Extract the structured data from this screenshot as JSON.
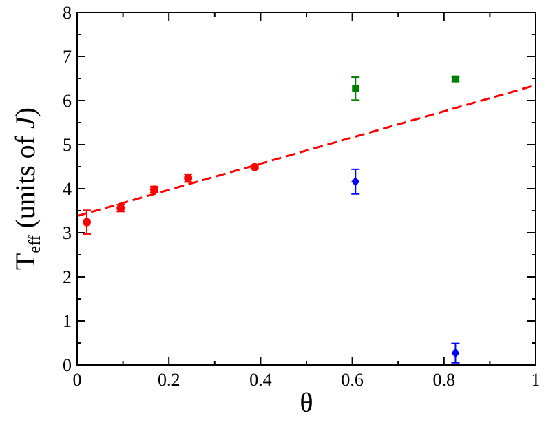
{
  "chart_data": {
    "type": "scatter",
    "xlabel": "θ",
    "ylabel": {
      "main": "T",
      "sub": "eff",
      "rest": " (units of ",
      "italic": "J",
      "close": ")"
    },
    "xlim": [
      0,
      1
    ],
    "ylim": [
      0,
      8
    ],
    "xticks": [
      "0",
      "0.2",
      "0.4",
      "0.6",
      "0.8",
      "1"
    ],
    "yticks": [
      "0",
      "1",
      "2",
      "3",
      "4",
      "5",
      "6",
      "7",
      "8"
    ],
    "grid": false,
    "series": [
      {
        "marker": "circle",
        "color": "#ff0000",
        "points": [
          {
            "x": 0.021,
            "y": 3.24,
            "err": 0.27
          },
          {
            "x": 0.095,
            "y": 3.56,
            "err": 0.08
          },
          {
            "x": 0.168,
            "y": 3.98,
            "err": 0.07
          },
          {
            "x": 0.242,
            "y": 4.24,
            "err": 0.09
          },
          {
            "x": 0.387,
            "y": 4.49,
            "err": 0.04
          }
        ]
      },
      {
        "marker": "square",
        "color": "#008000",
        "points": [
          {
            "x": 0.607,
            "y": 6.27,
            "err": 0.26
          },
          {
            "x": 0.825,
            "y": 6.49,
            "err": 0.05
          }
        ]
      },
      {
        "marker": "diamond",
        "color": "#0000ff",
        "points": [
          {
            "x": 0.607,
            "y": 4.16,
            "err": 0.28
          },
          {
            "x": 0.825,
            "y": 0.27,
            "err": 0.22
          }
        ]
      }
    ],
    "fit_line": {
      "style": "dashed",
      "color": "#ff0000",
      "x": [
        0,
        1
      ],
      "y": [
        3.38,
        6.35
      ]
    }
  }
}
